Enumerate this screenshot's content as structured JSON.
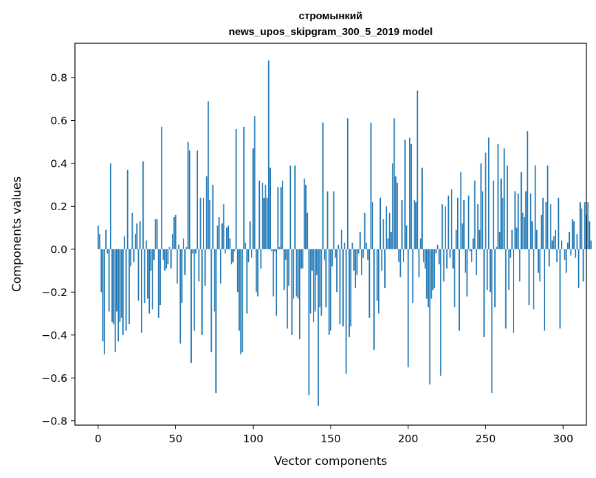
{
  "chart_data": {
    "type": "bar",
    "title_lines": [
      "стромынкий",
      "news_upos_skipgram_300_5_2019 model"
    ],
    "xlabel": "Vector components",
    "ylabel": "Components values",
    "xlim": [
      -15,
      315
    ],
    "ylim": [
      -0.82,
      0.96
    ],
    "xticks": [
      0,
      50,
      100,
      150,
      200,
      250,
      300
    ],
    "yticks": [
      -0.8,
      -0.6,
      -0.4,
      -0.2,
      0.0,
      0.2,
      0.4,
      0.6,
      0.8
    ],
    "ytick_labels": [
      "−0.8",
      "−0.6",
      "−0.4",
      "−0.2",
      "0.0",
      "0.2",
      "0.4",
      "0.6",
      "0.8"
    ],
    "bar_color": "#1f77b4",
    "values": [
      0.11,
      0.07,
      -0.2,
      -0.43,
      -0.49,
      0.09,
      -0.02,
      -0.29,
      0.4,
      -0.34,
      -0.35,
      -0.48,
      -0.29,
      -0.43,
      -0.34,
      -0.32,
      -0.4,
      0.06,
      -0.38,
      0.37,
      -0.35,
      -0.08,
      0.17,
      -0.06,
      0.07,
      0.12,
      -0.24,
      0.13,
      -0.39,
      0.41,
      -0.25,
      0.04,
      -0.23,
      -0.3,
      -0.1,
      -0.28,
      -0.05,
      0.14,
      0.14,
      -0.32,
      -0.26,
      0.57,
      -0.05,
      -0.1,
      -0.09,
      -0.07,
      0.01,
      -0.09,
      0.07,
      0.15,
      0.16,
      -0.16,
      0.02,
      -0.44,
      -0.25,
      0.05,
      -0.12,
      0.01,
      0.5,
      0.46,
      -0.53,
      -0.02,
      -0.38,
      -0.02,
      0.46,
      -0.15,
      0.24,
      -0.4,
      0.24,
      -0.17,
      0.34,
      0.69,
      0.23,
      -0.48,
      0.3,
      -0.29,
      -0.67,
      0.11,
      0.15,
      -0.16,
      0.12,
      0.21,
      -0.02,
      0.1,
      0.11,
      0.05,
      -0.07,
      -0.06,
      -0.01,
      0.56,
      -0.2,
      -0.38,
      -0.49,
      -0.48,
      0.57,
      0.03,
      -0.3,
      -0.06,
      0.13,
      -0.04,
      0.47,
      0.62,
      -0.2,
      -0.22,
      0.32,
      -0.09,
      0.31,
      0.24,
      0.3,
      0.24,
      0.88,
      0.38,
      -0.01,
      -0.22,
      -0.01,
      -0.31,
      0.29,
      0.01,
      0.29,
      0.32,
      -0.19,
      -0.05,
      -0.37,
      -0.17,
      0.39,
      -0.4,
      -0.23,
      0.39,
      -0.22,
      -0.23,
      -0.42,
      -0.09,
      -0.09,
      0.33,
      0.3,
      0.17,
      -0.68,
      -0.3,
      -0.1,
      -0.34,
      -0.29,
      -0.12,
      -0.73,
      -0.27,
      -0.31,
      0.59,
      -0.05,
      -0.27,
      0.27,
      -0.4,
      -0.38,
      -0.08,
      0.27,
      -0.04,
      -0.2,
      0.02,
      -0.35,
      0.09,
      -0.36,
      0.03,
      -0.58,
      0.61,
      -0.41,
      -0.36,
      0.03,
      -0.1,
      -0.18,
      -0.12,
      -0.02,
      0.08,
      -0.12,
      -0.04,
      0.17,
      0.03,
      -0.05,
      -0.32,
      0.59,
      0.22,
      -0.47,
      0.0,
      -0.24,
      -0.3,
      0.24,
      -0.1,
      0.14,
      -0.18,
      0.2,
      0.05,
      0.17,
      0.08,
      0.4,
      0.61,
      0.34,
      0.31,
      -0.06,
      -0.13,
      0.23,
      -0.06,
      0.51,
      0.11,
      -0.55,
      0.52,
      0.49,
      -0.25,
      0.23,
      0.22,
      0.74,
      -0.13,
      0.05,
      0.38,
      -0.06,
      -0.09,
      -0.23,
      -0.27,
      -0.63,
      -0.23,
      -0.19,
      -0.18,
      -0.02,
      0.02,
      -0.07,
      -0.59,
      0.21,
      -0.15,
      0.2,
      -0.09,
      0.25,
      -0.04,
      0.28,
      -0.09,
      -0.27,
      0.09,
      0.24,
      -0.38,
      0.36,
      0.12,
      0.23,
      -0.11,
      -0.22,
      0.25,
      -0.01,
      -0.06,
      0.05,
      0.32,
      -0.12,
      0.21,
      0.09,
      0.4,
      0.27,
      -0.41,
      0.45,
      -0.19,
      0.52,
      -0.2,
      -0.67,
      0.32,
      -0.27,
      0.01,
      0.49,
      0.08,
      0.33,
      0.24,
      0.47,
      -0.37,
      0.39,
      -0.19,
      -0.04,
      0.09,
      -0.39,
      0.27,
      0.1,
      0.26,
      -0.15,
      0.36,
      0.17,
      0.15,
      0.27,
      0.55,
      -0.26,
      0.26,
      0.13,
      -0.28,
      0.39,
      0.09,
      -0.11,
      -0.15,
      0.16,
      0.24,
      -0.38,
      0.22,
      0.39,
      -0.08,
      0.21,
      0.04,
      0.06,
      0.09,
      -0.06,
      0.24,
      -0.37,
      0.04,
      0.0,
      -0.05,
      -0.11,
      0.03,
      0.08,
      -0.03,
      0.14,
      0.13,
      -0.04,
      0.07,
      -0.18,
      0.22,
      0.19,
      -0.15,
      0.22,
      0.16,
      0.22,
      0.13,
      0.04
    ]
  }
}
